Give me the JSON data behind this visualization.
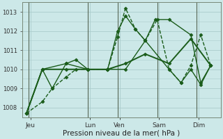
{
  "xlabel": "Pression niveau de la mer( hPa )",
  "background_color": "#cce8e8",
  "grid_color": "#aacccc",
  "line_color": "#1a5c1a",
  "ylim": [
    1007.5,
    1013.5
  ],
  "xlim": [
    -0.2,
    9.8
  ],
  "day_labels": [
    "Jeu",
    "Lun",
    "Ven",
    "Sam",
    "Dim"
  ],
  "day_tick_pos": [
    0.2,
    3.2,
    4.7,
    6.7,
    8.7
  ],
  "day_vline_pos": [
    0.1,
    3.1,
    4.6,
    6.6,
    8.6
  ],
  "yticks": [
    1008,
    1009,
    1010,
    1011,
    1012,
    1013
  ],
  "series": [
    {
      "x": [
        0,
        0.8,
        1.3,
        2.0,
        2.5,
        3.1,
        4.1,
        4.6,
        5.0,
        5.5,
        6.0,
        6.6,
        7.2,
        7.8,
        8.3,
        8.8,
        9.3
      ],
      "y": [
        1007.7,
        1008.3,
        1009.0,
        1009.6,
        1010.0,
        1010.0,
        1010.0,
        1011.7,
        1013.2,
        1012.1,
        1011.5,
        1012.6,
        1010.0,
        1009.3,
        1010.2,
        1011.8,
        1010.2
      ],
      "style": "--",
      "marker": "D",
      "marker_size": 2.5,
      "linewidth": 1.0
    },
    {
      "x": [
        0,
        0.8,
        2.0,
        2.5,
        3.1,
        4.1,
        4.6,
        5.0,
        5.5,
        6.0,
        6.5,
        7.2,
        8.3,
        8.8,
        9.3
      ],
      "y": [
        1007.7,
        1010.0,
        1010.3,
        1010.5,
        1010.0,
        1010.0,
        1012.0,
        1012.8,
        1012.1,
        1011.5,
        1012.6,
        1012.6,
        1011.8,
        1009.3,
        1010.2
      ],
      "style": "-",
      "marker": "D",
      "marker_size": 2.5,
      "linewidth": 1.0
    },
    {
      "x": [
        0,
        0.8,
        2.0,
        3.1,
        4.1,
        5.0,
        6.0,
        7.2,
        8.3,
        9.3
      ],
      "y": [
        1007.7,
        1010.0,
        1010.0,
        1010.0,
        1010.0,
        1010.3,
        1010.8,
        1010.3,
        1011.6,
        1010.2
      ],
      "style": "-",
      "marker": "D",
      "marker_size": 2.5,
      "linewidth": 1.4
    },
    {
      "x": [
        0,
        0.8,
        1.3,
        2.0,
        3.1,
        4.1,
        5.0,
        6.0,
        7.2,
        7.8,
        8.3,
        8.8,
        9.3
      ],
      "y": [
        1007.7,
        1010.0,
        1009.0,
        1010.3,
        1010.0,
        1010.0,
        1010.0,
        1011.5,
        1010.0,
        1009.3,
        1010.0,
        1009.2,
        1010.2
      ],
      "style": "-",
      "marker": "D",
      "marker_size": 2.5,
      "linewidth": 1.0
    }
  ]
}
